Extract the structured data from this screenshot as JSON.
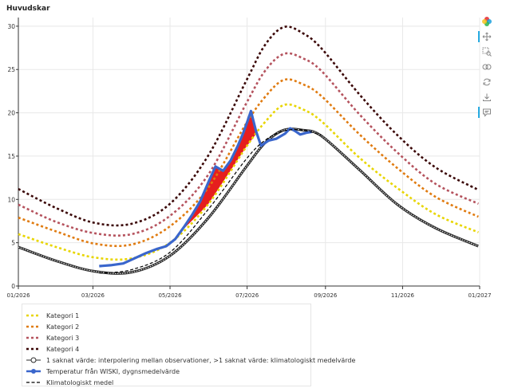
{
  "chart_data": {
    "type": "line",
    "title": "Huvudskar",
    "xlabel": "",
    "ylabel": "",
    "x_range": [
      "2026-01-01",
      "2027-01-01"
    ],
    "ylim": [
      0,
      31
    ],
    "x_ticks": [
      "01/2026",
      "03/2026",
      "05/2026",
      "07/2026",
      "09/2026",
      "11/2026",
      "01/2027"
    ],
    "y_ticks": [
      0,
      5,
      10,
      15,
      20,
      25,
      30
    ],
    "grid": true,
    "legend_position": "bottom-left, outside",
    "series": [
      {
        "name": "Kategori 1",
        "color": "#e8d500",
        "style": "dashed",
        "x": [
          "2026-01-01",
          "2026-01-31",
          "2026-03-02",
          "2026-04-01",
          "2026-05-01",
          "2026-05-31",
          "2026-06-30",
          "2026-07-15",
          "2026-07-30",
          "2026-08-14",
          "2026-08-29",
          "2026-09-28",
          "2026-10-28",
          "2026-11-27",
          "2026-12-31"
        ],
        "y": [
          6.0,
          4.5,
          3.3,
          3.2,
          5.0,
          9.4,
          16.0,
          18.9,
          20.9,
          20.4,
          19.0,
          14.8,
          11.3,
          8.3,
          6.2
        ]
      },
      {
        "name": "Kategori 2",
        "color": "#e07b10",
        "style": "dashed",
        "x": [
          "2026-01-01",
          "2026-01-31",
          "2026-03-02",
          "2026-04-01",
          "2026-05-01",
          "2026-05-31",
          "2026-06-30",
          "2026-07-15",
          "2026-07-30",
          "2026-08-14",
          "2026-08-29",
          "2026-09-28",
          "2026-10-28",
          "2026-11-27",
          "2026-12-31"
        ],
        "y": [
          7.9,
          6.3,
          4.9,
          4.8,
          6.9,
          11.3,
          18.7,
          21.8,
          23.8,
          23.3,
          21.9,
          17.5,
          13.6,
          10.3,
          8.0
        ]
      },
      {
        "name": "Kategori 3",
        "color": "#b5535e",
        "style": "dashed",
        "x": [
          "2026-01-01",
          "2026-01-31",
          "2026-03-02",
          "2026-04-01",
          "2026-05-01",
          "2026-05-31",
          "2026-06-30",
          "2026-07-15",
          "2026-07-30",
          "2026-08-14",
          "2026-08-29",
          "2026-09-28",
          "2026-10-28",
          "2026-11-27",
          "2026-12-31"
        ],
        "y": [
          9.4,
          7.4,
          6.1,
          6.0,
          8.1,
          12.8,
          21.0,
          24.8,
          26.8,
          26.3,
          24.8,
          19.8,
          15.4,
          11.8,
          9.5
        ]
      },
      {
        "name": "Kategori 4",
        "color": "#3a0606",
        "style": "dashed",
        "x": [
          "2026-01-01",
          "2026-01-31",
          "2026-03-02",
          "2026-04-01",
          "2026-05-01",
          "2026-05-31",
          "2026-06-30",
          "2026-07-15",
          "2026-07-30",
          "2026-08-14",
          "2026-08-29",
          "2026-09-28",
          "2026-10-28",
          "2026-11-27",
          "2026-12-31"
        ],
        "y": [
          11.2,
          9.0,
          7.3,
          7.2,
          9.5,
          15.0,
          23.6,
          27.8,
          29.9,
          29.2,
          27.4,
          22.1,
          17.4,
          13.7,
          11.1
        ]
      },
      {
        "name": "1 saknat värde: interpolering mellan observationer, >1 saknat värde: klimatologiskt medelvärde",
        "color": "#2b2b2b",
        "style": "thick-hollow",
        "x": [
          "2026-01-01",
          "2026-01-31",
          "2026-03-02",
          "2026-04-01",
          "2026-05-01",
          "2026-05-31",
          "2026-06-30",
          "2026-07-15",
          "2026-07-30",
          "2026-08-14",
          "2026-08-29",
          "2026-09-28",
          "2026-10-28",
          "2026-11-27",
          "2026-12-31"
        ],
        "y": [
          4.5,
          2.9,
          1.7,
          1.6,
          3.5,
          7.8,
          13.7,
          16.5,
          18.0,
          18.0,
          17.3,
          13.4,
          9.4,
          6.7,
          4.6
        ]
      },
      {
        "name": "Temperatur från WISKI, dygnsmedelvärde",
        "color": "#3a66cc",
        "style": "solid",
        "x": [
          "2026-03-06",
          "2026-03-15",
          "2026-03-25",
          "2026-04-03",
          "2026-04-12",
          "2026-04-21",
          "2026-04-28",
          "2026-05-05",
          "2026-05-12",
          "2026-05-18",
          "2026-05-25",
          "2026-06-01",
          "2026-06-06",
          "2026-06-12",
          "2026-06-18",
          "2026-06-24",
          "2026-06-28",
          "2026-07-01",
          "2026-07-04",
          "2026-07-08",
          "2026-07-12",
          "2026-07-18",
          "2026-07-24",
          "2026-07-31",
          "2026-08-04",
          "2026-08-08",
          "2026-08-12",
          "2026-08-17",
          "2026-08-21"
        ],
        "y": [
          2.3,
          2.4,
          2.6,
          3.2,
          3.8,
          4.3,
          4.6,
          5.4,
          6.8,
          8.1,
          9.8,
          12.2,
          13.8,
          13.3,
          14.5,
          16.3,
          17.7,
          18.9,
          20.2,
          17.9,
          16.2,
          16.8,
          17.0,
          17.6,
          18.2,
          17.9,
          17.5,
          17.7,
          17.8
        ]
      },
      {
        "name": "Klimatologiskt medel",
        "color": "#000000",
        "style": "dashed-thin",
        "x": [
          "2026-03-06",
          "2026-04-01",
          "2026-05-01",
          "2026-05-31",
          "2026-06-30",
          "2026-07-15",
          "2026-07-30",
          "2026-08-14",
          "2026-08-29"
        ],
        "y": [
          1.5,
          1.9,
          3.9,
          8.8,
          14.6,
          16.8,
          17.9,
          18.0,
          17.4
        ]
      }
    ],
    "exceedance_fill_color": "#e51212"
  },
  "toolbar": {
    "icons": [
      "bokeh-logo-icon",
      "pan-icon",
      "box-zoom-icon",
      "wheel-zoom-icon",
      "reset-icon",
      "save-icon",
      "hover-icon"
    ]
  }
}
